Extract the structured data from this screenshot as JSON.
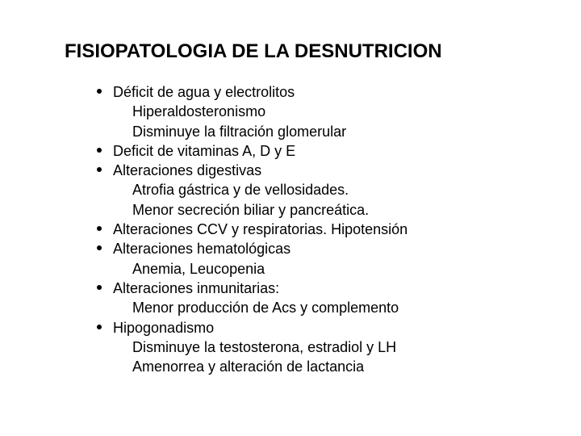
{
  "title": "FISIOPATOLOGIA DE LA DESNUTRICION",
  "items": [
    {
      "text": "Déficit de agua y electrolitos",
      "subs": [
        "Hiperaldosteronismo",
        "Disminuye la filtración glomerular"
      ]
    },
    {
      "text": "Deficit de vitaminas A, D y E",
      "subs": []
    },
    {
      "text": "Alteraciones digestivas",
      "subs": [
        "Atrofia gástrica y de vellosidades.",
        "Menor secreción biliar y pancreática."
      ]
    },
    {
      "text": "Alteraciones CCV y respiratorias. Hipotensión",
      "subs": []
    },
    {
      "text": "Alteraciones hematológicas",
      "subs": [
        "Anemia,  Leucopenia"
      ]
    },
    {
      "text": "Alteraciones inmunitarias:",
      "subs": [
        "Menor producción de Acs y  complemento"
      ]
    },
    {
      "text": "Hipogonadismo",
      "subs": [
        "Disminuye la testosterona, estradiol y LH",
        "Amenorrea y alteración de lactancia"
      ]
    }
  ]
}
